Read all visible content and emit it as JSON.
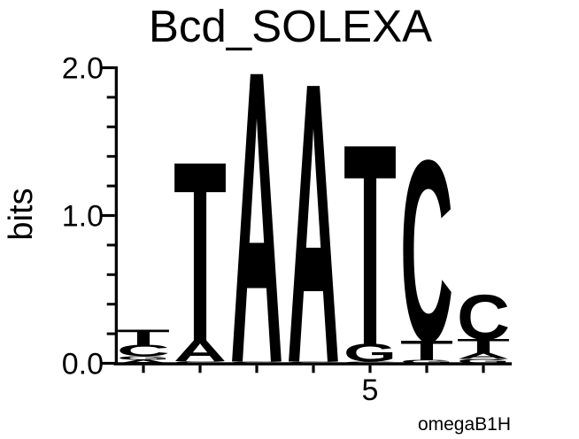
{
  "chart_data": {
    "type": "sequence_logo",
    "title": "Bcd_SOLEXA",
    "ylabel": "bits",
    "annotation": "omegaB1H",
    "ylim": [
      0.0,
      2.0
    ],
    "ytick_values": [
      0,
      1,
      2
    ],
    "ytick_labels": [
      "0.0",
      "1.0",
      "2.0"
    ],
    "y_minor_tick_step": 0.2,
    "num_positions": 7,
    "xtick": {
      "position": 5,
      "label": "5"
    },
    "grid": false,
    "base_colors": {
      "A": "#008000",
      "C": "#0000ee",
      "G": "#ffa500",
      "T": "#ff0000"
    },
    "positions": [
      {
        "index": 1,
        "stack": [
          {
            "base": "A",
            "bits": 0.024
          },
          {
            "base": "G",
            "bits": 0.024
          },
          {
            "base": "C",
            "bits": 0.075
          },
          {
            "base": "T",
            "bits": 0.105
          }
        ]
      },
      {
        "index": 2,
        "stack": [
          {
            "base": "C",
            "bits": 0.015
          },
          {
            "base": "A",
            "bits": 0.14
          },
          {
            "base": "T",
            "bits": 1.2
          }
        ]
      },
      {
        "index": 3,
        "stack": [
          {
            "base": "C",
            "bits": 0.012
          },
          {
            "base": "A",
            "bits": 1.95
          }
        ]
      },
      {
        "index": 4,
        "stack": [
          {
            "base": "C",
            "bits": 0.012
          },
          {
            "base": "A",
            "bits": 1.87
          }
        ]
      },
      {
        "index": 5,
        "stack": [
          {
            "base": "C",
            "bits": 0.012
          },
          {
            "base": "G",
            "bits": 0.12
          },
          {
            "base": "T",
            "bits": 1.34
          }
        ]
      },
      {
        "index": 6,
        "stack": [
          {
            "base": "G",
            "bits": 0.024
          },
          {
            "base": "T",
            "bits": 0.13
          },
          {
            "base": "C",
            "bits": 1.21
          }
        ]
      },
      {
        "index": 7,
        "stack": [
          {
            "base": "G",
            "bits": 0.03
          },
          {
            "base": "A",
            "bits": 0.042
          },
          {
            "base": "T",
            "bits": 0.09
          },
          {
            "base": "C",
            "bits": 0.3
          }
        ]
      }
    ]
  }
}
